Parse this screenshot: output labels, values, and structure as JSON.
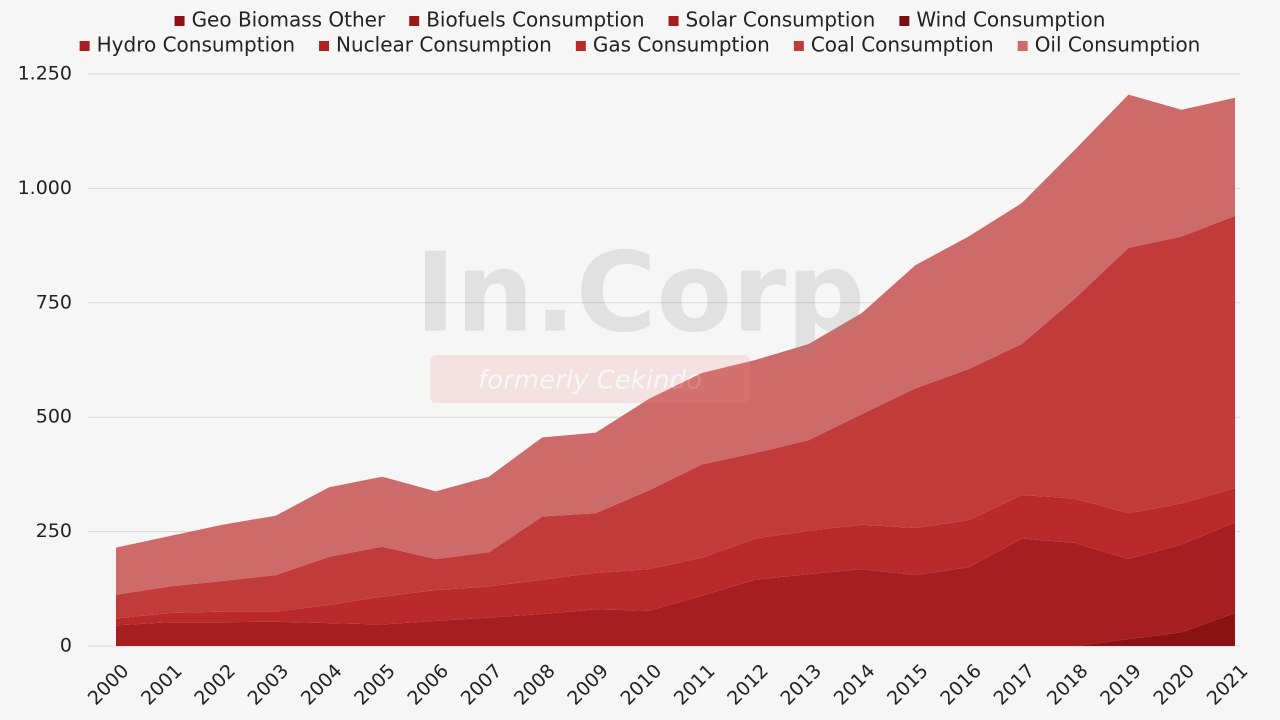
{
  "chart_data": {
    "type": "stacked-area",
    "categories": [
      "2000",
      "2001",
      "2002",
      "2003",
      "2004",
      "2005",
      "2006",
      "2007",
      "2008",
      "2009",
      "2010",
      "2011",
      "2012",
      "2013",
      "2014",
      "2015",
      "2016",
      "2017",
      "2018",
      "2019",
      "2020",
      "2021"
    ],
    "series": [
      {
        "name": "Geo Biomass Other",
        "color": "#8b1212",
        "values": [
          0,
          0,
          0,
          0,
          0,
          0,
          0,
          0,
          0,
          0,
          0,
          0,
          0,
          0,
          0,
          0,
          0,
          0,
          0,
          15,
          30,
          72
        ]
      },
      {
        "name": "Biofuels Consumption",
        "color": "#9b1b1b",
        "values": [
          0,
          0,
          0,
          0,
          0,
          0,
          0,
          0,
          0,
          0,
          0,
          0,
          0,
          0,
          0,
          0,
          0,
          0,
          0,
          0,
          0,
          0
        ]
      },
      {
        "name": "Solar Consumption",
        "color": "#a81e1e",
        "values": [
          0,
          0,
          0,
          0,
          0,
          0,
          0,
          0,
          0,
          0,
          0,
          0,
          0,
          0,
          0,
          0,
          0,
          0,
          0,
          0,
          0,
          0
        ]
      },
      {
        "name": "Wind Consumption",
        "color": "#7a1010",
        "values": [
          0,
          0,
          0,
          0,
          0,
          0,
          0,
          0,
          0,
          0,
          0,
          0,
          0,
          0,
          0,
          0,
          0,
          0,
          0,
          0,
          0,
          0
        ]
      },
      {
        "name": "Hydro Consumption",
        "color": "#a61e22",
        "values": [
          45,
          52,
          52,
          53,
          50,
          47,
          55,
          62,
          70,
          80,
          77,
          110,
          145,
          157,
          168,
          155,
          172,
          235,
          225,
          175,
          192,
          198
        ]
      },
      {
        "name": "Nuclear Consumption",
        "color": "#b02020",
        "values": [
          0,
          0,
          0,
          0,
          0,
          0,
          0,
          0,
          0,
          0,
          0,
          0,
          0,
          0,
          0,
          0,
          0,
          0,
          0,
          0,
          0,
          0
        ]
      },
      {
        "name": "Gas Consumption",
        "color": "#bb2a2a",
        "values": [
          15,
          20,
          23,
          22,
          40,
          61,
          67,
          68,
          75,
          80,
          91,
          83,
          90,
          95,
          97,
          103,
          103,
          95,
          97,
          100,
          90,
          75
        ]
      },
      {
        "name": "Coal Consumption",
        "color": "#c23b3b",
        "values": [
          52,
          58,
          67,
          80,
          105,
          109,
          68,
          75,
          138,
          130,
          172,
          204,
          187,
          198,
          242,
          305,
          330,
          330,
          438,
          580,
          583,
          595
        ]
      },
      {
        "name": "Oil Consumption",
        "color": "#cd6b6b",
        "values": [
          103,
          110,
          123,
          130,
          152,
          153,
          148,
          165,
          173,
          176,
          200,
          200,
          203,
          210,
          221,
          269,
          290,
          308,
          325,
          335,
          277,
          258
        ]
      }
    ],
    "ylim": [
      0,
      1250
    ],
    "yticks": [
      0,
      250,
      500,
      750,
      {
        "value": 1000,
        "label": "1.000"
      },
      {
        "value": 1250,
        "label": "1.250"
      }
    ],
    "grid": true,
    "watermark": {
      "brand": "In.Corp",
      "formerly": "formerly Cekindo"
    }
  }
}
